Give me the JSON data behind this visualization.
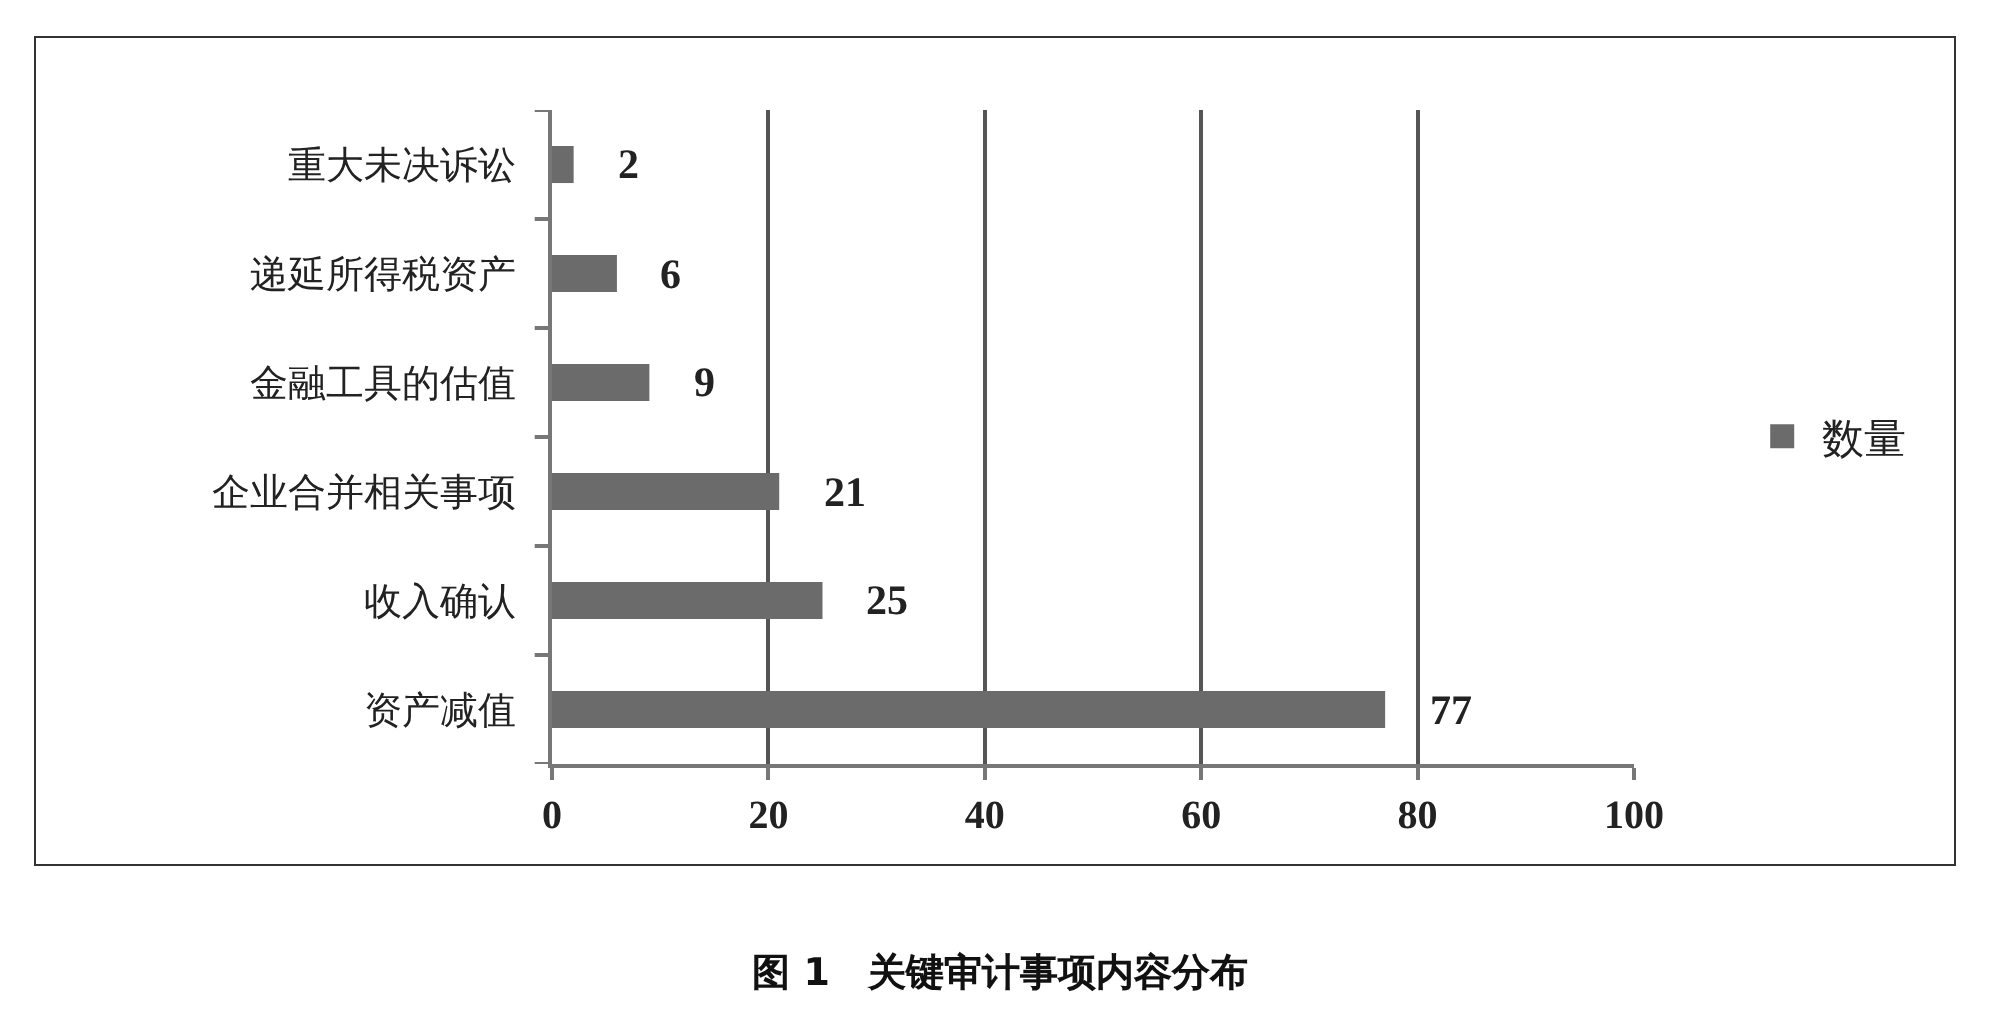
{
  "chart_data": {
    "type": "bar",
    "orientation": "horizontal",
    "title": "图 1　关键审计事项内容分布",
    "categories": [
      "重大未决诉讼",
      "递延所得税资产",
      "金融工具的估值",
      "企业合并相关事项",
      "收入确认",
      "资产减值"
    ],
    "series": [
      {
        "name": "数量",
        "color": "#6b6b6b",
        "values": [
          2,
          6,
          9,
          21,
          25,
          77
        ]
      }
    ],
    "xlim": [
      0,
      100
    ],
    "xticks": [
      0,
      20,
      40,
      60,
      80,
      100
    ],
    "grid": "x",
    "legend": "right",
    "data_labels": true
  }
}
